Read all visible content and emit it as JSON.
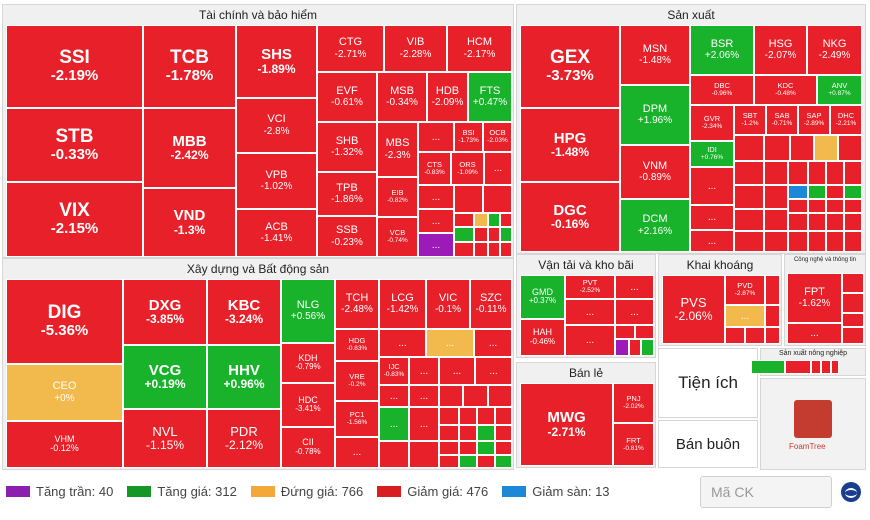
{
  "sectors": {
    "finance": "Tài chính và bảo hiểm",
    "manufacturing": "Sản xuất",
    "construction": "Xây dựng và Bất động sản",
    "transport": "Vận tải và kho bãi",
    "mining": "Khai khoáng",
    "tech": "Công nghệ và thông tin",
    "retail": "Bán lẻ",
    "agriculture": "Sản xuất nông nghiệp",
    "utilities": "Tiện ích",
    "wholesale": "Bán buôn"
  },
  "tiles": {
    "SSI": {
      "t": "SSI",
      "p": "-2.19%"
    },
    "STB": {
      "t": "STB",
      "p": "-0.33%"
    },
    "VIX": {
      "t": "VIX",
      "p": "-2.15%"
    },
    "TCB": {
      "t": "TCB",
      "p": "-1.78%"
    },
    "MBB": {
      "t": "MBB",
      "p": "-2.42%"
    },
    "VND": {
      "t": "VND",
      "p": "-1.3%"
    },
    "SHS": {
      "t": "SHS",
      "p": "-1.89%"
    },
    "VCI": {
      "t": "VCI",
      "p": "-2.8%"
    },
    "VPB": {
      "t": "VPB",
      "p": "-1.02%"
    },
    "ACB": {
      "t": "ACB",
      "p": "-1.41%"
    },
    "CTG": {
      "t": "CTG",
      "p": "-2.71%"
    },
    "VIB": {
      "t": "VIB",
      "p": "-2.28%"
    },
    "HCM": {
      "t": "HCM",
      "p": "-2.17%"
    },
    "EVF": {
      "t": "EVF",
      "p": "-0.61%"
    },
    "MSB": {
      "t": "MSB",
      "p": "-0.34%"
    },
    "HDB": {
      "t": "HDB",
      "p": "-2.09%"
    },
    "FTS": {
      "t": "FTS",
      "p": "+0.47%"
    },
    "SHB": {
      "t": "SHB",
      "p": "-1.32%"
    },
    "MBS": {
      "t": "MBS",
      "p": "-2.3%"
    },
    "BSI": {
      "t": "BSI",
      "p": "-1.73%"
    },
    "OCB": {
      "t": "OCB",
      "p": "-2.03%"
    },
    "TPB": {
      "t": "TPB",
      "p": "-1.86%"
    },
    "EIB": {
      "t": "EIB",
      "p": "-0.82%"
    },
    "CTS": {
      "t": "CTS",
      "p": "-0.83%"
    },
    "ORS": {
      "t": "ORS",
      "p": "-1.09%"
    },
    "SSB": {
      "t": "SSB",
      "p": "-0.23%"
    },
    "VCB": {
      "t": "VCB",
      "p": "-0.74%"
    },
    "GEX": {
      "t": "GEX",
      "p": "-3.73%"
    },
    "HPG": {
      "t": "HPG",
      "p": "-1.48%"
    },
    "DGC": {
      "t": "DGC",
      "p": "-0.16%"
    },
    "MSN": {
      "t": "MSN",
      "p": "-1.48%"
    },
    "DPM": {
      "t": "DPM",
      "p": "+1.96%"
    },
    "VNM": {
      "t": "VNM",
      "p": "-0.89%"
    },
    "DCM": {
      "t": "DCM",
      "p": "+2.16%"
    },
    "BSR": {
      "t": "BSR",
      "p": "+2.06%"
    },
    "HSG": {
      "t": "HSG",
      "p": "-2.07%"
    },
    "NKG": {
      "t": "NKG",
      "p": "-2.49%"
    },
    "DBC": {
      "t": "DBC",
      "p": "-0.96%"
    },
    "KDC": {
      "t": "KDC",
      "p": "-0.48%"
    },
    "ANV": {
      "t": "ANV",
      "p": "+0.87%"
    },
    "GVR": {
      "t": "GVR",
      "p": "-2.34%"
    },
    "SBT": {
      "t": "SBT",
      "p": "-1.2%"
    },
    "SAB": {
      "t": "SAB",
      "p": "-0.71%"
    },
    "SAP": {
      "t": "SAP",
      "p": "-2.89%"
    },
    "DHC": {
      "t": "DHC",
      "p": "-2.21%"
    },
    "IDI": {
      "t": "IDI",
      "p": "+0.76%"
    },
    "DIG": {
      "t": "DIG",
      "p": "-5.36%"
    },
    "CEO": {
      "t": "CEO",
      "p": "+0%"
    },
    "VHM": {
      "t": "VHM",
      "p": "-0.12%"
    },
    "DXG": {
      "t": "DXG",
      "p": "-3.85%"
    },
    "VCG": {
      "t": "VCG",
      "p": "+0.19%"
    },
    "NVL": {
      "t": "NVL",
      "p": "-1.15%"
    },
    "KBC": {
      "t": "KBC",
      "p": "-3.24%"
    },
    "HHV": {
      "t": "HHV",
      "p": "+0.96%"
    },
    "PDR": {
      "t": "PDR",
      "p": "-2.12%"
    },
    "NLG": {
      "t": "NLG",
      "p": "+0.56%"
    },
    "KDH": {
      "t": "KDH",
      "p": "-0.79%"
    },
    "HDC": {
      "t": "HDC",
      "p": "-3.41%"
    },
    "CII": {
      "t": "CII",
      "p": "-0.78%"
    },
    "TCH": {
      "t": "TCH",
      "p": "-2.48%"
    },
    "LCG": {
      "t": "LCG",
      "p": "-1.42%"
    },
    "VIC": {
      "t": "VIC",
      "p": "-0.1%"
    },
    "SZC": {
      "t": "SZC",
      "p": "-0.11%"
    },
    "HDG": {
      "t": "HDG",
      "p": "-0.83%"
    },
    "VRE": {
      "t": "VRE",
      "p": "-0.2%"
    },
    "PC1": {
      "t": "PC1",
      "p": "-1.56%"
    },
    "IJC": {
      "t": "IJC",
      "p": "-0.83%"
    },
    "GMD": {
      "t": "GMD",
      "p": "+0.37%"
    },
    "PVT": {
      "t": "PVT",
      "p": "-2.52%"
    },
    "HAH": {
      "t": "HAH",
      "p": "-0.46%"
    },
    "PVS": {
      "t": "PVS",
      "p": "-2.06%"
    },
    "PVD": {
      "t": "PVD",
      "p": "-2.87%"
    },
    "FPT": {
      "t": "FPT",
      "p": "-1.62%"
    },
    "MWG": {
      "t": "MWG",
      "p": "-2.71%"
    },
    "PNJ": {
      "t": "PNJ",
      "p": "-2.02%"
    },
    "FRT": {
      "t": "FRT",
      "p": "-0.81%"
    }
  },
  "ellipsis": "...",
  "legend": [
    {
      "label": "Tăng trần: 40",
      "color": "#8a1fb0"
    },
    {
      "label": "Tăng giá: 312",
      "color": "#169624"
    },
    {
      "label": "Đứng giá: 766",
      "color": "#f2a93a"
    },
    {
      "label": "Giảm giá: 476",
      "color": "#d81e20"
    },
    {
      "label": "Giảm sàn: 13",
      "color": "#1e88d8"
    }
  ],
  "search": {
    "placeholder": "Mã CK"
  },
  "foamtree": "FoamTree"
}
